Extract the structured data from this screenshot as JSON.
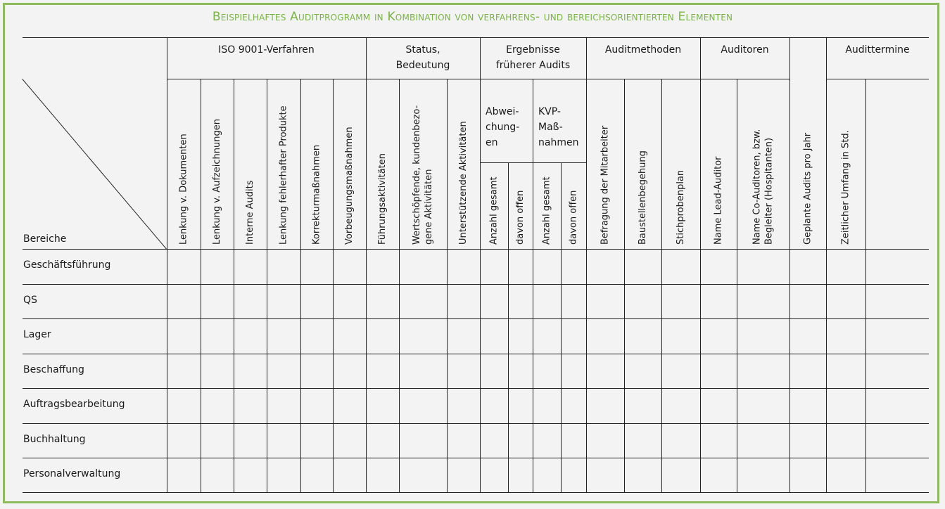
{
  "title": "Beispielhaftes Auditprogramm in Kombination von verfahrens- und bereichsorientierten Elementen",
  "corner_label": "Bereiche",
  "groups": [
    {
      "label": "ISO 9001-Verfahren"
    },
    {
      "label": "Status,\nBedeutung"
    },
    {
      "label": "Ergebnisse\nfrüherer Audits"
    },
    {
      "label": "Auditmethoden"
    },
    {
      "label": "Auditoren"
    },
    {
      "label": "Audittermine"
    }
  ],
  "subgroups": [
    {
      "label": "Abwei-\nchung-\nen"
    },
    {
      "label": "KVP-\nMaß-\nnahmen"
    }
  ],
  "columns": [
    {
      "label": "Lenkung v. Dokumenten"
    },
    {
      "label": "Lenkung v. Aufzeichnungen"
    },
    {
      "label": "Interne Audits"
    },
    {
      "label": "Lenkung fehlerhafter Produkte"
    },
    {
      "label": "Korrekturmaßnahmen"
    },
    {
      "label": "Vorbeugungsmaßnahmen"
    },
    {
      "label": "Führungsaktivitäten"
    },
    {
      "label": "Wertschöpfende, kundenbezo-\ngene Aktivitäten"
    },
    {
      "label": "Unterstützende Aktivitäten"
    },
    {
      "label": "Anzahl gesamt"
    },
    {
      "label": "davon offen"
    },
    {
      "label": "Anzahl gesamt"
    },
    {
      "label": "davon offen"
    },
    {
      "label": "Befragung der Mitarbeiter"
    },
    {
      "label": "Baustellenbegehung"
    },
    {
      "label": "Stichprobenplan"
    },
    {
      "label": "Name Lead-Auditor"
    },
    {
      "label": "Name Co-Auditoren, bzw.\nBegleiter (Hospitanten)"
    },
    {
      "label": "Geplante Audits pro Jahr"
    },
    {
      "label": "Zeitlicher Umfang in Std."
    },
    {
      "label": ""
    }
  ],
  "rows": [
    {
      "label": "Geschäftsführung"
    },
    {
      "label": "QS"
    },
    {
      "label": "Lager"
    },
    {
      "label": "Beschaffung"
    },
    {
      "label": "Auftragsbearbeitung"
    },
    {
      "label": "Buchhaltung"
    },
    {
      "label": "Personalverwaltung"
    }
  ],
  "colors": {
    "accent": "#79b543",
    "frame": "#8dbb5c"
  }
}
